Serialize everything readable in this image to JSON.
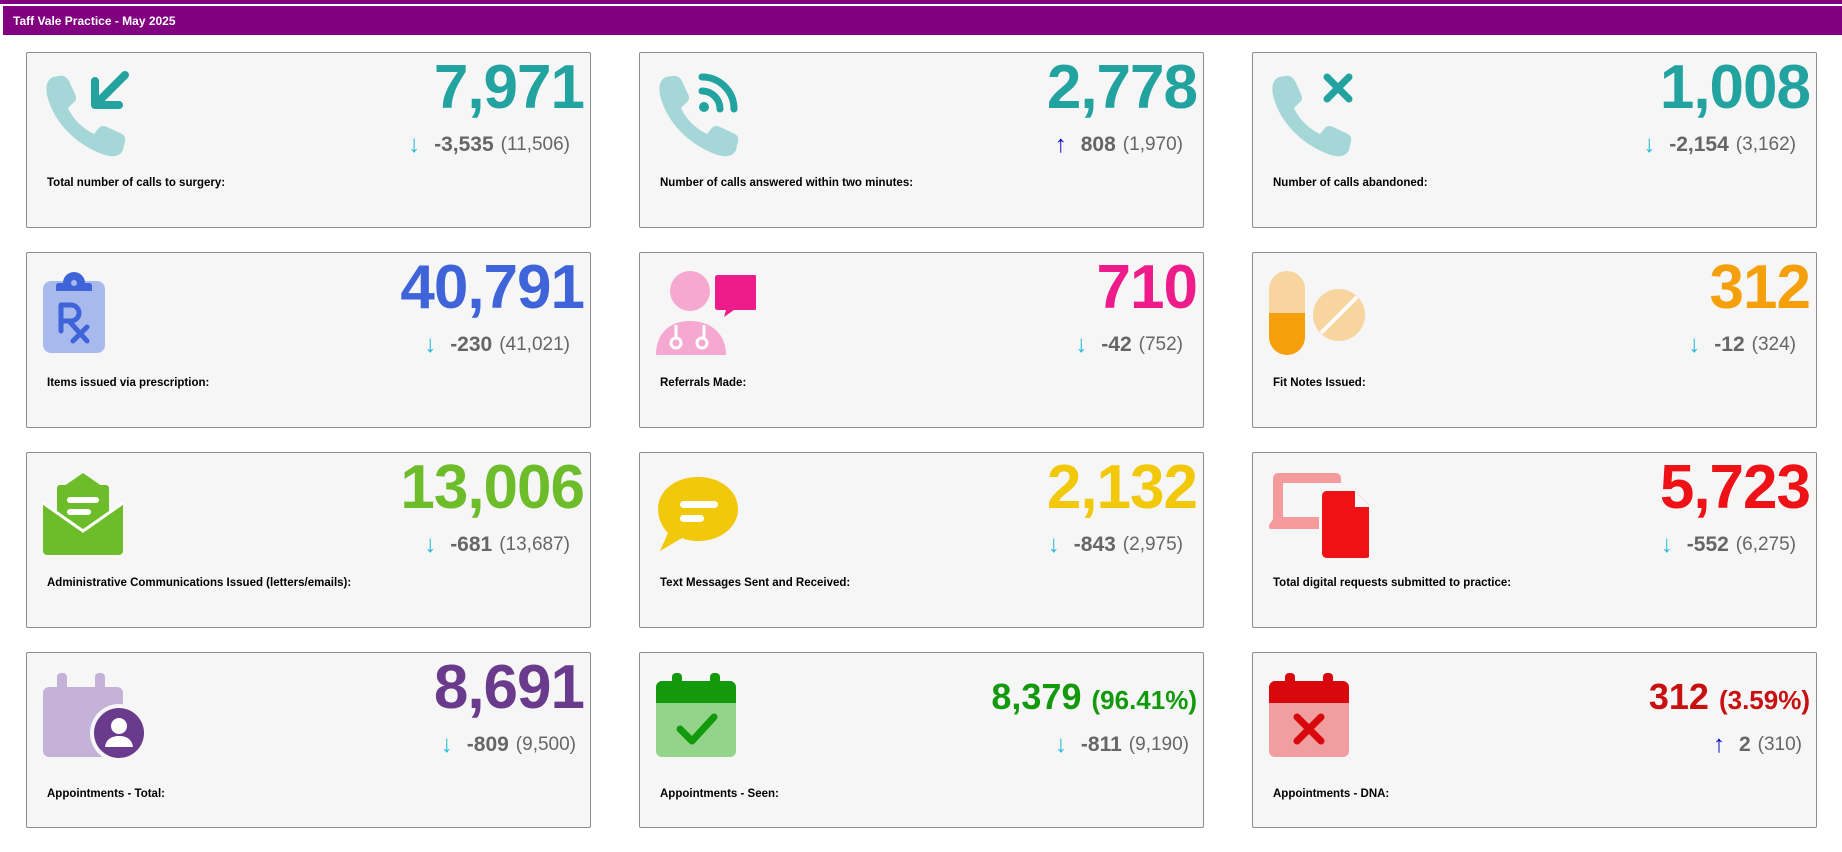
{
  "header": {
    "title": "Taff Vale Practice - May 2025"
  },
  "colors": {
    "header_bg": "#800080",
    "arrow_down": "#21b7e0",
    "arrow_up": "#0a10c9",
    "teal": "#23a3a0",
    "blue": "#3f63d8",
    "pink": "#ee1c8a",
    "orange": "#f5a00a",
    "green_light": "#6dbd2a",
    "yellow": "#f2c80a",
    "red": "#ee1216",
    "purple": "#6a3b8c",
    "green": "#12990c",
    "dark_red": "#c81010"
  },
  "cards": [
    {
      "icon": "phone-incoming-icon",
      "value": "7,971",
      "arrow": "↓",
      "delta": "-3,535",
      "previous": "(11,506)",
      "label": "Total number of calls to surgery:"
    },
    {
      "icon": "phone-answered-icon",
      "value": "2,778",
      "arrow": "↑",
      "delta": "808",
      "previous": "(1,970)",
      "label": "Number of calls answered within two minutes:"
    },
    {
      "icon": "phone-abandoned-icon",
      "value": "1,008",
      "arrow": "↓",
      "delta": "-2,154",
      "previous": "(3,162)",
      "label": "Number of calls abandoned:"
    },
    {
      "icon": "prescription-icon",
      "value": "40,791",
      "arrow": "↓",
      "delta": "-230",
      "previous": "(41,021)",
      "label": "Items issued via prescription:"
    },
    {
      "icon": "doctor-chat-icon",
      "value": "710",
      "arrow": "↓",
      "delta": "-42",
      "previous": "(752)",
      "label": "Referrals Made:"
    },
    {
      "icon": "pills-icon",
      "value": "312",
      "arrow": "↓",
      "delta": "-12",
      "previous": "(324)",
      "label": "Fit Notes Issued:"
    },
    {
      "icon": "envelope-letter-icon",
      "value": "13,006",
      "arrow": "↓",
      "delta": "-681",
      "previous": "(13,687)",
      "label": "Administrative Communications Issued (letters/emails):"
    },
    {
      "icon": "chat-bubble-icon",
      "value": "2,132",
      "arrow": "↓",
      "delta": "-843",
      "previous": "(2,975)",
      "label": "Text Messages Sent and Received:"
    },
    {
      "icon": "devices-icon",
      "value": "5,723",
      "arrow": "↓",
      "delta": "-552",
      "previous": "(6,275)",
      "label": "Total digital requests submitted to practice:"
    },
    {
      "icon": "calendar-user-icon",
      "value": "8,691",
      "arrow": "↓",
      "delta": "-809",
      "previous": "(9,500)",
      "label": "Appointments - Total:"
    },
    {
      "icon": "calendar-check-icon",
      "value": "8,379",
      "pct": "(96.41%)",
      "arrow": "↓",
      "delta": "-811",
      "previous": "(9,190)",
      "label": "Appointments - Seen:"
    },
    {
      "icon": "calendar-cross-icon",
      "value": "312",
      "pct": "(3.59%)",
      "arrow": "↑",
      "delta": "2",
      "previous": "(310)",
      "label": "Appointments - DNA:"
    }
  ]
}
